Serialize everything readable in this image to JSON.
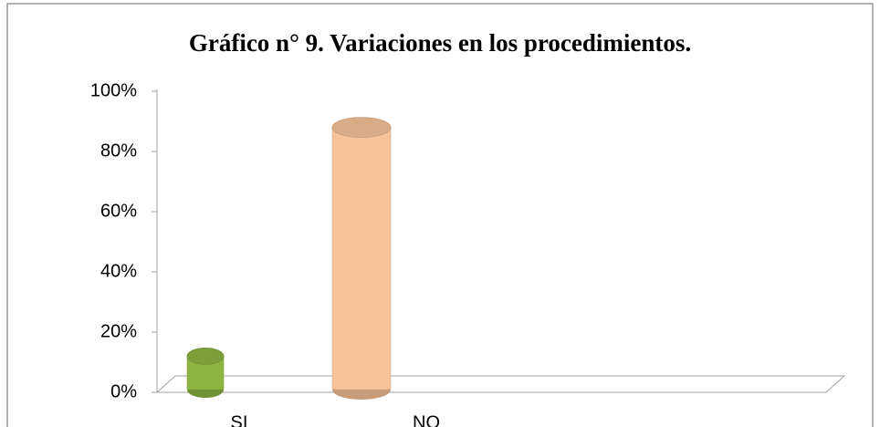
{
  "chart_data": {
    "type": "bar",
    "title": "Gráfico n° 9. Variaciones en los procedimientos.",
    "categories": [
      "SI",
      "NO"
    ],
    "values": [
      12,
      88
    ],
    "colors": [
      "#8db542",
      "#f7c39a"
    ],
    "ylim": [
      0,
      100
    ],
    "yticks": [
      {
        "value": 0,
        "label": "0%"
      },
      {
        "value": 20,
        "label": "20%"
      },
      {
        "value": 40,
        "label": "40%"
      },
      {
        "value": 60,
        "label": "60%"
      },
      {
        "value": 80,
        "label": "80%"
      },
      {
        "value": 100,
        "label": "100%"
      }
    ]
  }
}
